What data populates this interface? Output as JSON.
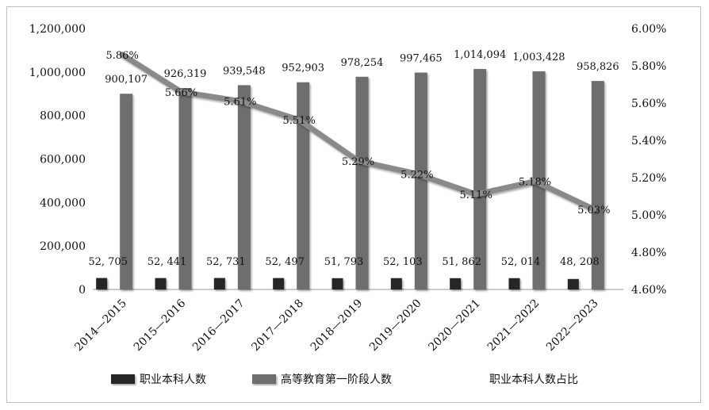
{
  "chart_data": {
    "type": "bar",
    "categories": [
      "2014—2015",
      "2015—2016",
      "2016—2017",
      "2017—2018",
      "2018—2019",
      "2019—2020",
      "2020—2021",
      "2021—2022",
      "2022—2023"
    ],
    "series": [
      {
        "name": "职业本科人数",
        "type": "bar",
        "axis": "left",
        "color": "#262626",
        "values": [
          52705,
          52441,
          52731,
          52497,
          51793,
          52103,
          51862,
          52014,
          48208
        ],
        "labels": [
          "52, 705",
          "52, 441",
          "52, 731",
          "52, 497",
          "51, 793",
          "52, 103",
          "51, 862",
          "52, 014",
          "48, 208"
        ]
      },
      {
        "name": "高等教育第一阶段人数",
        "type": "bar",
        "axis": "left",
        "color": "#6e6e6e",
        "values": [
          900107,
          926319,
          939548,
          952903,
          978254,
          997465,
          1014094,
          1003428,
          958826
        ],
        "labels": [
          "900,107",
          "926,319",
          "939,548",
          "952,903",
          "978,254",
          "997,465",
          "1,014,094",
          "1,003,428",
          "958,826"
        ]
      },
      {
        "name": "职业本科人数占比",
        "type": "line",
        "axis": "right",
        "color": "#8a8a8a",
        "values": [
          5.86,
          5.66,
          5.61,
          5.51,
          5.29,
          5.22,
          5.11,
          5.18,
          5.03
        ],
        "labels": [
          "5.86%",
          "5.66%",
          "5.61%",
          "5.51%",
          "5.29%",
          "5.22%",
          "5.11%",
          "5.18%",
          "5.03%"
        ]
      }
    ],
    "y_left": {
      "ylim": [
        0,
        1200000
      ],
      "ticks": [
        0,
        200000,
        400000,
        600000,
        800000,
        1000000,
        1200000
      ],
      "tick_labels": [
        "0",
        "200,000",
        "400,000",
        "600,000",
        "800,000",
        "1,000,000",
        "1,200,000"
      ]
    },
    "y_right": {
      "ylim": [
        4.6,
        6.0
      ],
      "ticks": [
        4.6,
        4.8,
        5.0,
        5.2,
        5.4,
        5.6,
        5.8,
        6.0
      ],
      "tick_labels": [
        "4.60%",
        "4.80%",
        "5.00%",
        "5.20%",
        "5.40%",
        "5.60%",
        "5.80%",
        "6.00%"
      ]
    },
    "grid": false,
    "legend": "bottom"
  }
}
